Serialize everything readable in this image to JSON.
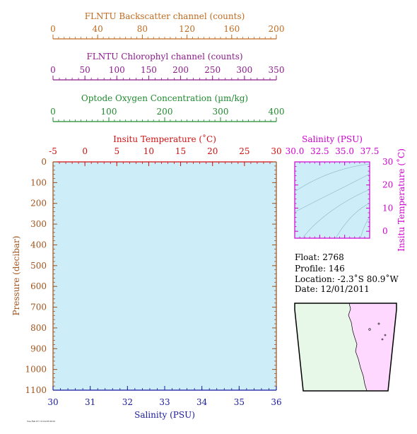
{
  "colors": {
    "backscatter": "#c06a1e",
    "chlorophyll": "#8b1a8b",
    "oxygen": "#1f8a2e",
    "temperature": "#d01010",
    "salinity": "#1a1a9a",
    "pressure": "#a0521a",
    "ts_axis": "#d000d0",
    "plot_bg": "#cdeef8",
    "land": "#e8f8e8",
    "map_sea": "#ffd8ff"
  },
  "chart_data": [
    {
      "type": "line",
      "title": "",
      "xlabel": "Salinity (PSU)",
      "ylabel": "Pressure (decibar)",
      "series": [],
      "axes": {
        "pressure": {
          "label": "Pressure (decibar)",
          "range": [
            0,
            1100
          ],
          "reversed": true,
          "ticks": [
            "0",
            "100",
            "200",
            "300",
            "400",
            "500",
            "600",
            "700",
            "800",
            "900",
            "1000",
            "1100"
          ]
        },
        "salinity": {
          "label": "Salinity (PSU)",
          "range": [
            30,
            36
          ],
          "ticks": [
            "30",
            "31",
            "32",
            "33",
            "34",
            "35",
            "36"
          ]
        },
        "temperature": {
          "label": "Insitu Temperature (˚C)",
          "range": [
            -5,
            30
          ],
          "ticks": [
            "-5",
            "0",
            "5",
            "10",
            "15",
            "20",
            "25",
            "30"
          ]
        },
        "oxygen": {
          "label": "Optode Oxygen Concentration (µm/kg)",
          "range": [
            0,
            400
          ],
          "ticks": [
            "0",
            "100",
            "200",
            "300",
            "400"
          ]
        },
        "chlorophyll": {
          "label": "FLNTU Chlorophyl channel (counts)",
          "range": [
            0,
            350
          ],
          "ticks": [
            "0",
            "50",
            "100",
            "150",
            "200",
            "250",
            "300",
            "350"
          ]
        },
        "backscatter": {
          "label": "FLNTU Backscatter channel (counts)",
          "range": [
            0,
            200
          ],
          "ticks": [
            "0",
            "40",
            "80",
            "120",
            "160",
            "200"
          ]
        }
      }
    },
    {
      "type": "scatter",
      "title": "",
      "xlabel": "Salinity (PSU)",
      "ylabel": "Insitu Temperature (˚C)",
      "series": [],
      "xlim": [
        30,
        37.5
      ],
      "ylim": [
        -3,
        30
      ],
      "xticks": [
        "30.0",
        "32.5",
        "35.0",
        "37.5"
      ],
      "yticks": [
        "0",
        "10",
        "20",
        "30"
      ]
    }
  ],
  "info": {
    "float": "Float:  2768",
    "profile": "Profile:  146",
    "location": "Location:  -2.3˚S  80.9˚W",
    "date": "Date:  12/01/2011"
  },
  "footer_stamp": "Tue Feb 07 13:14:03 2012"
}
